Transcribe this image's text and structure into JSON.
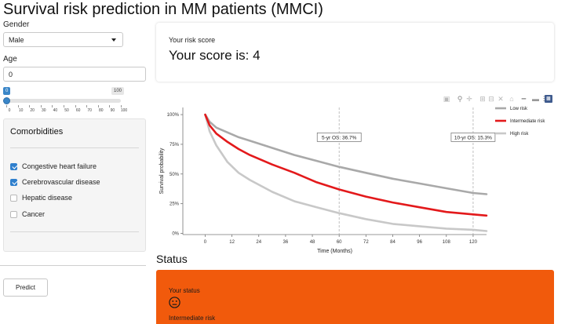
{
  "app": {
    "title": "Survival risk prediction in MM patients (MMCI)"
  },
  "sidebar": {
    "gender": {
      "label": "Gender",
      "value": "Male"
    },
    "age": {
      "label": "Age",
      "value": "0",
      "slider": {
        "value": 0,
        "min_label": "0",
        "max_label": "100",
        "ticks": [
          "0",
          "10",
          "20",
          "30",
          "40",
          "50",
          "60",
          "70",
          "80",
          "90",
          "100"
        ]
      }
    },
    "comorbidities": {
      "title": "Comorbidities",
      "items": [
        {
          "label": "Congestive heart failure",
          "checked": true
        },
        {
          "label": "Cerebrovascular disease",
          "checked": true
        },
        {
          "label": "Hepatic disease",
          "checked": false
        },
        {
          "label": "Cancer",
          "checked": false
        }
      ]
    },
    "predict_label": "Predict"
  },
  "score": {
    "caption": "Your risk score",
    "value_text": "Your score is: 4"
  },
  "modebar": {
    "icons": [
      "camera-icon",
      "zoom-icon",
      "pan-icon",
      "zoom-in-icon",
      "zoom-out-icon",
      "autoscale-icon",
      "reset-axes-icon",
      "spike-lines-icon",
      "hover-closest-icon",
      "hover-compare-icon",
      "plotly-logo-icon"
    ]
  },
  "chart_data": {
    "type": "line",
    "xlabel": "Time (Months)",
    "ylabel": "Survival probability",
    "xlim": [
      -10,
      126
    ],
    "ylim": [
      -1,
      106
    ],
    "xticks": [
      0,
      12,
      24,
      36,
      48,
      60,
      72,
      84,
      96,
      108,
      120
    ],
    "yticks": [
      0,
      25,
      50,
      75,
      100
    ],
    "ytick_labels": [
      "0%",
      "25%",
      "50%",
      "75%",
      "100%"
    ],
    "legend_position": "right",
    "grid": false,
    "series": [
      {
        "name": "Low risk",
        "color": "#a9a9a9",
        "x": [
          0,
          2,
          5,
          10,
          15,
          20,
          30,
          40,
          50,
          60,
          72,
          84,
          96,
          108,
          120,
          126
        ],
        "y": [
          100,
          94,
          89,
          85,
          81,
          78,
          72,
          66,
          61,
          56,
          51,
          46,
          42,
          38,
          34,
          33
        ]
      },
      {
        "name": "Intermediate risk",
        "color": "#e3191b",
        "x": [
          0,
          2,
          5,
          10,
          15,
          20,
          30,
          40,
          50,
          60,
          72,
          84,
          96,
          108,
          120,
          126
        ],
        "y": [
          100,
          91,
          84,
          77,
          71,
          66,
          58,
          51,
          43,
          37,
          31,
          26,
          22,
          18,
          16,
          15
        ]
      },
      {
        "name": "High risk",
        "color": "#c8c8c8",
        "x": [
          0,
          2,
          5,
          10,
          15,
          20,
          30,
          40,
          50,
          60,
          72,
          84,
          96,
          108,
          120,
          126
        ],
        "y": [
          100,
          86,
          74,
          60,
          51,
          45,
          35,
          27,
          22,
          17,
          12,
          8,
          6,
          4,
          3,
          2
        ]
      }
    ],
    "vlines": [
      60,
      120
    ],
    "annotations": [
      {
        "x": 60,
        "y": 80,
        "text": "5-yr OS: 36.7%"
      },
      {
        "x": 120,
        "y": 80,
        "text": "10-yr OS: 15.3%"
      }
    ]
  },
  "status": {
    "heading": "Status",
    "caption": "Your status",
    "icon": "neutral-face-icon",
    "text": "Intermediate risk",
    "color": "#f15a0c"
  }
}
